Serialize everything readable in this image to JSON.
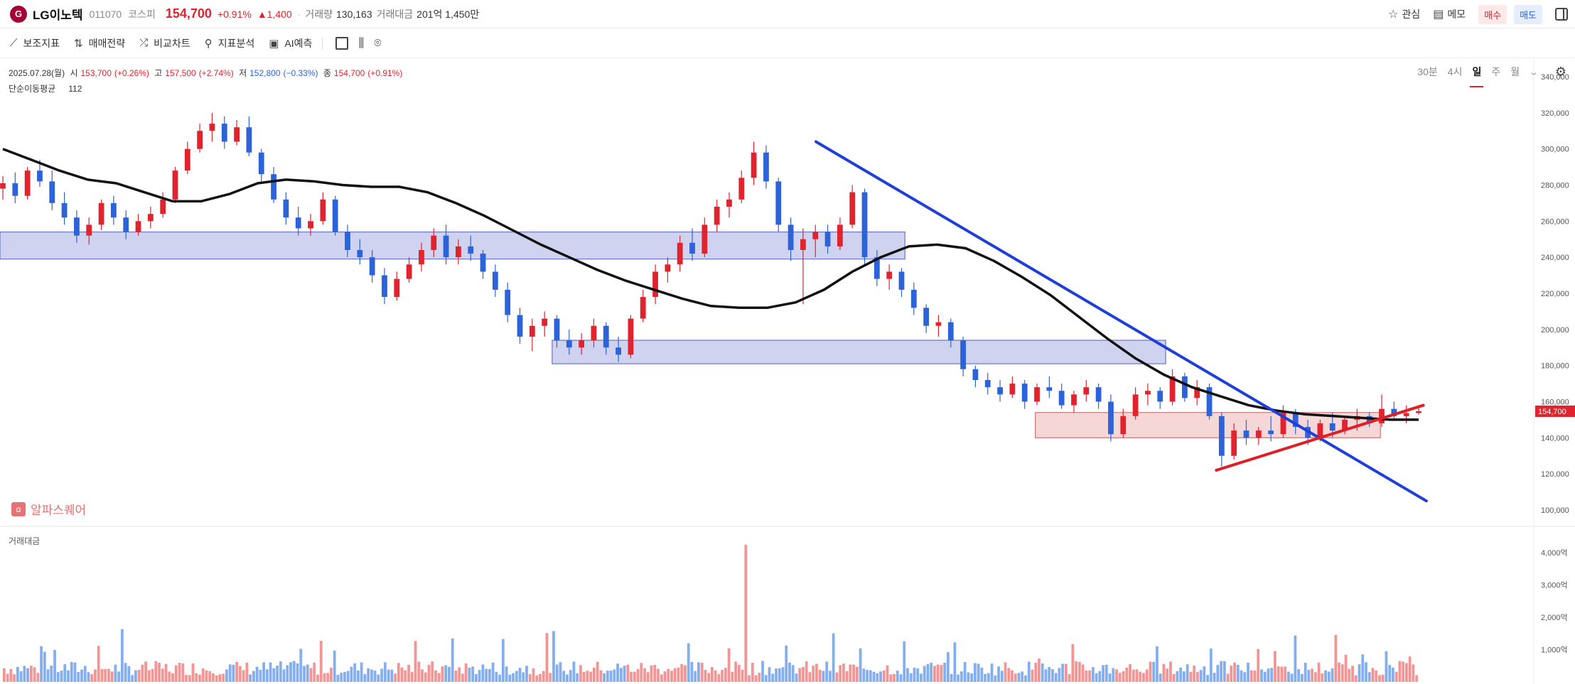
{
  "header": {
    "logo_text": "G",
    "name": "LG이노텍",
    "code": "011070",
    "market": "코스피",
    "price": "154,700",
    "change_pct": "+0.91%",
    "change_abs": "▲1,400",
    "volume_label": "거래량",
    "volume_value": "130,163",
    "amount_label": "거래대금",
    "amount_value": "201억 1,450만",
    "watch_label": "관심",
    "memo_label": "메모",
    "buy_label": "매수",
    "sell_label": "매도"
  },
  "toolbar": {
    "indicators": "보조지표",
    "strategy": "매매전략",
    "compare": "비교차트",
    "analysis": "지표분석",
    "ai": "AI예측",
    "timeframes": [
      "30분",
      "4시",
      "일",
      "주",
      "월"
    ],
    "active_timeframe": "일"
  },
  "ohlc": {
    "date": "2025.07.28(월)",
    "open_label": "시",
    "open": "153,700",
    "open_chg": "(+0.26%)",
    "high_label": "고",
    "high": "157,500",
    "high_chg": "(+2.74%)",
    "low_label": "저",
    "low": "152,800",
    "low_chg": "(−0.33%)",
    "close_label": "종",
    "close": "154,700",
    "close_chg": "(+0.91%)"
  },
  "ma": {
    "label": "단순이동평균",
    "period": "112"
  },
  "watermark": "알파스퀘어",
  "volume_panel_label": "거래대금",
  "colors": {
    "up": "#e0232d",
    "down": "#2d63d8",
    "ma": "#111111",
    "trend_down": "#1f3fd8",
    "trend_up": "#e01e25"
  },
  "chart_data": {
    "type": "candlestick",
    "ylim": [
      100000,
      340000
    ],
    "y_ticks": [
      "340,000",
      "320,000",
      "300,000",
      "280,000",
      "260,000",
      "240,000",
      "220,000",
      "200,000",
      "180,000",
      "160,000",
      "140,000",
      "120,000",
      "100,000"
    ],
    "last_price_tag": "154,700",
    "candles": [
      [
        278000,
        285000,
        272000,
        281000
      ],
      [
        281000,
        287000,
        270000,
        274000
      ],
      [
        274000,
        290000,
        272000,
        288000
      ],
      [
        288000,
        294000,
        279000,
        282000
      ],
      [
        282000,
        288000,
        266000,
        270000
      ],
      [
        270000,
        276000,
        258000,
        262000
      ],
      [
        262000,
        266000,
        248000,
        252000
      ],
      [
        252000,
        262000,
        247000,
        258000
      ],
      [
        258000,
        272000,
        255000,
        270000
      ],
      [
        270000,
        274000,
        258000,
        262000
      ],
      [
        262000,
        266000,
        250000,
        254000
      ],
      [
        254000,
        264000,
        252000,
        260000
      ],
      [
        260000,
        268000,
        256000,
        264000
      ],
      [
        264000,
        276000,
        262000,
        272000
      ],
      [
        272000,
        290000,
        270000,
        288000
      ],
      [
        288000,
        304000,
        286000,
        300000
      ],
      [
        300000,
        314000,
        298000,
        310000
      ],
      [
        310000,
        320000,
        304000,
        314000
      ],
      [
        314000,
        318000,
        300000,
        304000
      ],
      [
        304000,
        316000,
        302000,
        312000
      ],
      [
        312000,
        318000,
        296000,
        298000
      ],
      [
        298000,
        300000,
        282000,
        286000
      ],
      [
        286000,
        290000,
        270000,
        272000
      ],
      [
        272000,
        276000,
        258000,
        262000
      ],
      [
        262000,
        268000,
        252000,
        256000
      ],
      [
        256000,
        264000,
        252000,
        260000
      ],
      [
        260000,
        276000,
        258000,
        272000
      ],
      [
        272000,
        274000,
        252000,
        254000
      ],
      [
        254000,
        258000,
        240000,
        244000
      ],
      [
        244000,
        250000,
        236000,
        240000
      ],
      [
        240000,
        244000,
        226000,
        230000
      ],
      [
        230000,
        234000,
        214000,
        218000
      ],
      [
        218000,
        232000,
        216000,
        228000
      ],
      [
        228000,
        240000,
        226000,
        236000
      ],
      [
        236000,
        248000,
        232000,
        244000
      ],
      [
        244000,
        256000,
        240000,
        252000
      ],
      [
        252000,
        258000,
        236000,
        240000
      ],
      [
        240000,
        250000,
        236000,
        246000
      ],
      [
        246000,
        252000,
        238000,
        242000
      ],
      [
        242000,
        244000,
        228000,
        232000
      ],
      [
        232000,
        236000,
        218000,
        222000
      ],
      [
        222000,
        226000,
        204000,
        208000
      ],
      [
        208000,
        212000,
        192000,
        196000
      ],
      [
        196000,
        206000,
        188000,
        202000
      ],
      [
        202000,
        210000,
        196000,
        206000
      ],
      [
        206000,
        208000,
        190000,
        194000
      ],
      [
        194000,
        200000,
        186000,
        190000
      ],
      [
        190000,
        198000,
        186000,
        194000
      ],
      [
        194000,
        206000,
        190000,
        202000
      ],
      [
        202000,
        204000,
        186000,
        190000
      ],
      [
        190000,
        196000,
        182000,
        186000
      ],
      [
        186000,
        208000,
        184000,
        206000
      ],
      [
        206000,
        222000,
        204000,
        218000
      ],
      [
        218000,
        236000,
        214000,
        232000
      ],
      [
        232000,
        240000,
        226000,
        236000
      ],
      [
        236000,
        252000,
        232000,
        248000
      ],
      [
        248000,
        256000,
        238000,
        242000
      ],
      [
        242000,
        262000,
        240000,
        258000
      ],
      [
        258000,
        272000,
        254000,
        268000
      ],
      [
        268000,
        276000,
        262000,
        272000
      ],
      [
        272000,
        288000,
        270000,
        284000
      ],
      [
        284000,
        304000,
        280000,
        298000
      ],
      [
        298000,
        302000,
        278000,
        282000
      ],
      [
        282000,
        284000,
        254000,
        258000
      ],
      [
        258000,
        262000,
        238000,
        244000
      ],
      [
        244000,
        256000,
        214000,
        250000
      ],
      [
        250000,
        258000,
        240000,
        254000
      ],
      [
        254000,
        258000,
        242000,
        246000
      ],
      [
        246000,
        262000,
        244000,
        258000
      ],
      [
        258000,
        280000,
        256000,
        276000
      ],
      [
        276000,
        278000,
        236000,
        240000
      ],
      [
        240000,
        244000,
        224000,
        228000
      ],
      [
        228000,
        236000,
        222000,
        232000
      ],
      [
        232000,
        234000,
        218000,
        222000
      ],
      [
        222000,
        226000,
        208000,
        212000
      ],
      [
        212000,
        214000,
        198000,
        202000
      ],
      [
        202000,
        208000,
        196000,
        204000
      ],
      [
        204000,
        206000,
        190000,
        194000
      ],
      [
        194000,
        196000,
        174000,
        178000
      ],
      [
        178000,
        180000,
        168000,
        172000
      ],
      [
        172000,
        176000,
        164000,
        168000
      ],
      [
        168000,
        172000,
        160000,
        164000
      ],
      [
        164000,
        174000,
        162000,
        170000
      ],
      [
        170000,
        172000,
        156000,
        160000
      ],
      [
        160000,
        170000,
        158000,
        168000
      ],
      [
        168000,
        174000,
        162000,
        166000
      ],
      [
        166000,
        170000,
        156000,
        158000
      ],
      [
        158000,
        166000,
        154000,
        164000
      ],
      [
        164000,
        172000,
        160000,
        168000
      ],
      [
        168000,
        170000,
        156000,
        160000
      ],
      [
        160000,
        164000,
        138000,
        142000
      ],
      [
        142000,
        156000,
        140000,
        152000
      ],
      [
        152000,
        168000,
        150000,
        164000
      ],
      [
        164000,
        170000,
        158000,
        166000
      ],
      [
        166000,
        168000,
        156000,
        160000
      ],
      [
        160000,
        178000,
        158000,
        174000
      ],
      [
        174000,
        176000,
        160000,
        162000
      ],
      [
        162000,
        172000,
        158000,
        168000
      ],
      [
        168000,
        170000,
        150000,
        152000
      ],
      [
        152000,
        154000,
        124000,
        130000
      ],
      [
        130000,
        148000,
        128000,
        144000
      ],
      [
        144000,
        150000,
        136000,
        140000
      ],
      [
        140000,
        146000,
        136000,
        144000
      ],
      [
        144000,
        152000,
        138000,
        142000
      ],
      [
        142000,
        158000,
        140000,
        154000
      ],
      [
        154000,
        156000,
        142000,
        146000
      ],
      [
        146000,
        150000,
        136000,
        140000
      ],
      [
        140000,
        150000,
        138000,
        148000
      ],
      [
        148000,
        154000,
        140000,
        144000
      ],
      [
        144000,
        152000,
        142000,
        150000
      ],
      [
        150000,
        156000,
        144000,
        152000
      ],
      [
        152000,
        154000,
        146000,
        148000
      ],
      [
        148000,
        164000,
        146000,
        156000
      ],
      [
        156000,
        160000,
        150000,
        152000
      ],
      [
        152000,
        158000,
        148000,
        153700
      ],
      [
        153700,
        157500,
        152800,
        154700
      ]
    ],
    "ma_112": [
      300000,
      294000,
      288000,
      283000,
      281000,
      276000,
      271000,
      271000,
      275000,
      281000,
      283000,
      282000,
      280000,
      279000,
      279000,
      276000,
      270000,
      263000,
      255000,
      247000,
      240000,
      233000,
      227000,
      222000,
      217000,
      213000,
      212000,
      212000,
      215000,
      222000,
      232000,
      240000,
      246000,
      247000,
      245000,
      238000,
      229000,
      219000,
      207000,
      195000,
      184000,
      175000,
      168000,
      163000,
      158000,
      155000,
      153000,
      152000,
      151000,
      150000,
      150000
    ],
    "zones": [
      {
        "type": "support-resistance",
        "color": "blue",
        "y_low": 239000,
        "y_high": 254000,
        "x_start": 0.0,
        "x_end": 0.59
      },
      {
        "type": "support-resistance",
        "color": "blue",
        "y_low": 181000,
        "y_high": 194000,
        "x_start": 0.36,
        "x_end": 0.76
      },
      {
        "type": "support-resistance",
        "color": "red",
        "y_low": 140000,
        "y_high": 154000,
        "x_start": 0.675,
        "x_end": 0.9
      }
    ],
    "trendlines": [
      {
        "name": "downtrend",
        "color": "blue",
        "from": [
          0.532,
          304000
        ],
        "to": [
          0.93,
          105000
        ]
      },
      {
        "name": "uptrend",
        "color": "red",
        "from": [
          0.793,
          122000
        ],
        "to": [
          0.928,
          158000
        ]
      }
    ]
  },
  "volume_chart": {
    "y_ticks": [
      "4,000억",
      "3,000억",
      "2,000억",
      "1,000억"
    ],
    "ylim": [
      0,
      4400
    ]
  }
}
